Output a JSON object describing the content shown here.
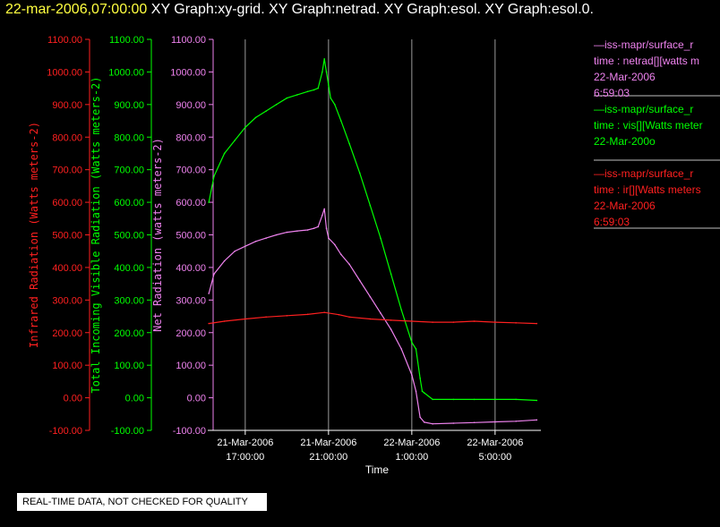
{
  "title": {
    "date": "22-mar-2006,07:00:00",
    "graphs": "XY Graph:xy-grid.  XY Graph:netrad.  XY Graph:esol.  XY Graph:esol.0."
  },
  "colors": {
    "ir": "#ff2020",
    "vis": "#00ff00",
    "net": "#ee82ee",
    "axis": "#ffffff",
    "grid": "#9a9a9a"
  },
  "legend": [
    {
      "color": "#ee82ee",
      "lines": [
        "—iss-mapr/surface_r",
        "time : netrad[][watts m",
        "22-Mar-2006",
        "6:59:03"
      ]
    },
    {
      "color": "#00ff00",
      "lines": [
        "—iss-mapr/surface_r",
        "time : vis[][Watts meter",
        "22-Mar-200o"
      ]
    },
    {
      "color": "#ff2020",
      "lines": [
        "—iss-mapr/surface_r",
        "time : ir[][Watts meters",
        "22-Mar-2006",
        "6:59:03"
      ]
    }
  ],
  "quality_note": "REAL-TIME DATA, NOT CHECKED FOR QUALITY",
  "chart_data": {
    "type": "line",
    "xlabel": "Time",
    "x_ticks": [
      {
        "date": "21-Mar-2006",
        "time": "17:00:00",
        "hours": 17
      },
      {
        "date": "21-Mar-2006",
        "time": "21:00:00",
        "hours": 21
      },
      {
        "date": "22-Mar-2006",
        "time": "1:00:00",
        "hours": 25
      },
      {
        "date": "22-Mar-2006",
        "time": "5:00:00",
        "hours": 29
      }
    ],
    "xlim_hours": [
      15.2,
      31.2
    ],
    "axes": [
      {
        "id": "ir",
        "label": "Infrared Radiation (Watts meters-2)",
        "color": "#ff2020",
        "ylim": [
          -100,
          1100
        ],
        "ticks": [
          "-100.00",
          "0.00",
          "100.00",
          "200.00",
          "300.00",
          "400.00",
          "500.00",
          "600.00",
          "700.00",
          "800.00",
          "900.00",
          "1000.00",
          "1100.00"
        ]
      },
      {
        "id": "vis",
        "label": "Total Incoming Visible Radiation (Watts meters-2)",
        "color": "#00ff00",
        "ylim": [
          -100,
          1100
        ],
        "ticks": [
          "-100.00",
          "0.00",
          "100.00",
          "200.00",
          "300.00",
          "400.00",
          "500.00",
          "600.00",
          "700.00",
          "800.00",
          "900.00",
          "1000.00",
          "1100.00"
        ]
      },
      {
        "id": "net",
        "label": "Net Radiation (watts meters-2)",
        "color": "#ee82ee",
        "ylim": [
          -100,
          1100
        ],
        "ticks": [
          "-100.00",
          "0.00",
          "100.00",
          "200.00",
          "300.00",
          "400.00",
          "500.00",
          "600.00",
          "700.00",
          "800.00",
          "900.00",
          "1000.00",
          "1100.00"
        ]
      }
    ],
    "grid": "vertical lines at x ticks",
    "series": [
      {
        "axis": "vis",
        "color": "#00ff00",
        "x": [
          15.25,
          15.5,
          16.0,
          16.5,
          17.0,
          17.5,
          18.0,
          18.5,
          19.0,
          19.5,
          20.0,
          20.3,
          20.5,
          20.7,
          20.8,
          20.9,
          21.0,
          21.1,
          21.3,
          21.6,
          22.0,
          22.5,
          23.0,
          23.5,
          24.0,
          24.5,
          25.0,
          25.2,
          25.4,
          25.5,
          25.6,
          26.0,
          27.0,
          28.0,
          29.0,
          30.0,
          31.0
        ],
        "values": [
          600,
          680,
          750,
          790,
          830,
          860,
          880,
          900,
          920,
          930,
          940,
          945,
          950,
          1000,
          1040,
          1000,
          960,
          920,
          900,
          850,
          780,
          690,
          590,
          490,
          380,
          270,
          170,
          150,
          60,
          20,
          15,
          -5,
          -5,
          -5,
          -5,
          -5,
          -8
        ]
      },
      {
        "axis": "net",
        "color": "#ee82ee",
        "x": [
          15.25,
          15.5,
          16.0,
          16.5,
          17.0,
          17.5,
          18.0,
          18.5,
          19.0,
          19.5,
          20.0,
          20.3,
          20.5,
          20.7,
          20.8,
          20.9,
          21.0,
          21.3,
          21.6,
          22.0,
          22.5,
          23.0,
          23.5,
          24.0,
          24.5,
          25.0,
          25.2,
          25.4,
          25.6,
          26.0,
          27.0,
          28.0,
          29.0,
          30.0,
          31.0
        ],
        "values": [
          320,
          380,
          420,
          450,
          465,
          480,
          490,
          500,
          508,
          512,
          515,
          520,
          525,
          560,
          580,
          520,
          490,
          470,
          440,
          410,
          360,
          310,
          260,
          210,
          150,
          70,
          20,
          -60,
          -75,
          -80,
          -78,
          -76,
          -74,
          -72,
          -68
        ]
      },
      {
        "axis": "ir",
        "color": "#ff2020",
        "x": [
          15.25,
          16.0,
          17.0,
          18.0,
          19.0,
          20.0,
          20.8,
          21.5,
          22.0,
          23.0,
          24.0,
          25.0,
          26.0,
          27.0,
          28.0,
          29.0,
          30.0,
          31.0
        ],
        "values": [
          228,
          235,
          242,
          248,
          252,
          256,
          262,
          255,
          248,
          242,
          238,
          235,
          232,
          232,
          235,
          232,
          230,
          228
        ]
      }
    ]
  }
}
